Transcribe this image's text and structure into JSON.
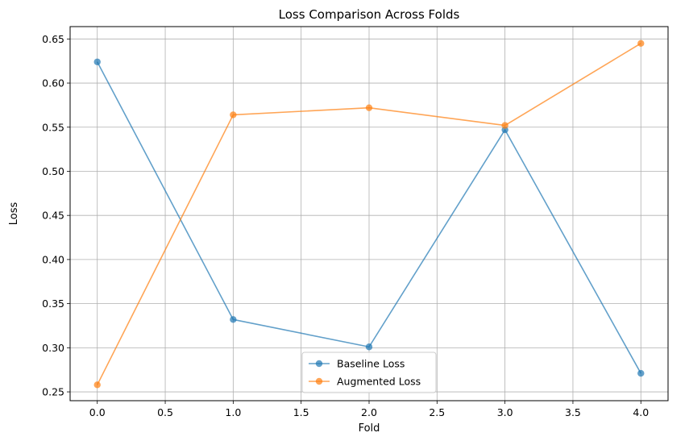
{
  "chart_data": {
    "type": "line",
    "title": "Loss Comparison Across Folds",
    "xlabel": "Fold",
    "ylabel": "Loss",
    "x": [
      0,
      1,
      2,
      3,
      4
    ],
    "xlim": [
      -0.2,
      4.2
    ],
    "ylim": [
      0.24,
      0.664
    ],
    "xticks": [
      "0.0",
      "0.5",
      "1.0",
      "1.5",
      "2.0",
      "2.5",
      "3.0",
      "3.5",
      "4.0"
    ],
    "yticks": [
      "0.25",
      "0.30",
      "0.35",
      "0.40",
      "0.45",
      "0.50",
      "0.55",
      "0.60",
      "0.65"
    ],
    "grid": true,
    "legend_position": "bottom-center",
    "series": [
      {
        "name": "Baseline Loss",
        "color": "#1f77b4",
        "marker": "circle",
        "values": [
          0.624,
          0.332,
          0.301,
          0.547,
          0.271
        ]
      },
      {
        "name": "Augmented Loss",
        "color": "#ff7f0e",
        "marker": "circle",
        "values": [
          0.258,
          0.564,
          0.572,
          0.552,
          0.645
        ]
      }
    ]
  }
}
